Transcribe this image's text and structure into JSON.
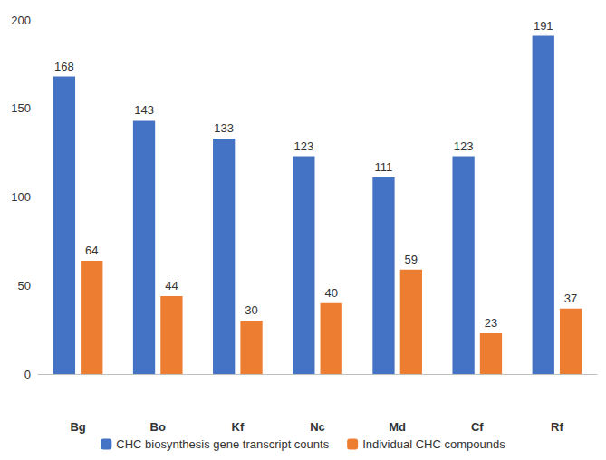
{
  "chart_data": {
    "type": "bar",
    "categories": [
      "Bg",
      "Bo",
      "Kf",
      "Nc",
      "Md",
      "Cf",
      "Rf"
    ],
    "series": [
      {
        "name": "CHC biosynthesis gene transcript counts",
        "color": "#4472c4",
        "values": [
          168,
          143,
          133,
          123,
          111,
          123,
          191
        ]
      },
      {
        "name": "Individual CHC compounds",
        "color": "#ed7d31",
        "values": [
          64,
          44,
          30,
          40,
          59,
          23,
          37
        ]
      }
    ],
    "ylim": [
      0,
      200
    ],
    "yticks": [
      0,
      50,
      100,
      150,
      200
    ],
    "grid": false,
    "legend": "bottom",
    "data_labels": true
  }
}
